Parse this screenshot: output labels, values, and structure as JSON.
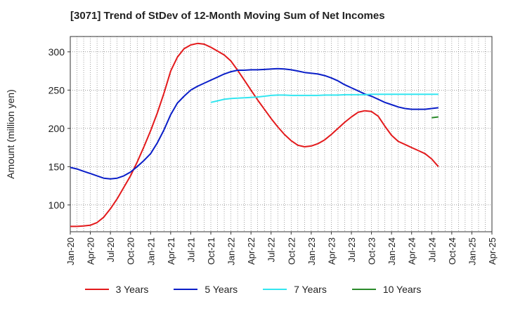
{
  "chart_data": {
    "type": "line",
    "title": "[3071]  Trend of StDev of 12-Month Moving Sum of Net Incomes",
    "xlabel": "",
    "ylabel": "Amount (million yen)",
    "x_tick_labels": [
      "Jan-20",
      "Apr-20",
      "Jul-20",
      "Oct-20",
      "Jan-21",
      "Apr-21",
      "Jul-21",
      "Oct-21",
      "Jan-22",
      "Apr-22",
      "Jul-22",
      "Oct-22",
      "Jan-23",
      "Apr-23",
      "Jul-23",
      "Oct-23",
      "Jan-24",
      "Apr-24",
      "Jul-24",
      "Oct-24",
      "Jan-25",
      "Apr-25"
    ],
    "y_ticks": [
      100,
      150,
      200,
      250,
      300
    ],
    "ylim": [
      65,
      320
    ],
    "xlim_months": [
      0,
      63
    ],
    "grid": true,
    "legend_position": "bottom",
    "series": [
      {
        "name": "3 Years",
        "color": "#e31a1c",
        "points": [
          [
            0,
            72
          ],
          [
            1,
            72
          ],
          [
            2,
            72.5
          ],
          [
            3,
            73.5
          ],
          [
            4,
            77
          ],
          [
            5,
            84
          ],
          [
            6,
            95
          ],
          [
            7,
            108
          ],
          [
            8,
            123
          ],
          [
            9,
            138
          ],
          [
            10,
            156
          ],
          [
            11,
            176
          ],
          [
            12,
            197
          ],
          [
            13,
            220
          ],
          [
            14,
            246
          ],
          [
            15,
            275
          ],
          [
            16,
            293
          ],
          [
            17,
            304
          ],
          [
            18,
            309
          ],
          [
            19,
            311
          ],
          [
            20,
            310
          ],
          [
            21,
            306
          ],
          [
            22,
            301
          ],
          [
            23,
            296
          ],
          [
            24,
            288
          ],
          [
            25,
            276
          ],
          [
            26,
            263
          ],
          [
            27,
            250
          ],
          [
            28,
            237
          ],
          [
            29,
            225
          ],
          [
            30,
            213
          ],
          [
            31,
            202
          ],
          [
            32,
            192
          ],
          [
            33,
            184
          ],
          [
            34,
            178
          ],
          [
            35,
            176
          ],
          [
            36,
            177
          ],
          [
            37,
            180
          ],
          [
            38,
            185
          ],
          [
            39,
            192
          ],
          [
            40,
            200
          ],
          [
            41,
            208
          ],
          [
            42,
            215
          ],
          [
            43,
            221
          ],
          [
            44,
            223
          ],
          [
            45,
            222
          ],
          [
            46,
            216
          ],
          [
            47,
            203
          ],
          [
            48,
            191
          ],
          [
            49,
            183
          ],
          [
            50,
            179
          ],
          [
            51,
            175
          ],
          [
            52,
            171
          ],
          [
            53,
            167
          ],
          [
            54,
            160
          ],
          [
            55,
            150
          ]
        ]
      },
      {
        "name": "5 Years",
        "color": "#0a1ec8",
        "points": [
          [
            0,
            149
          ],
          [
            1,
            147
          ],
          [
            2,
            144
          ],
          [
            3,
            141
          ],
          [
            4,
            138
          ],
          [
            5,
            135
          ],
          [
            6,
            134
          ],
          [
            7,
            135
          ],
          [
            8,
            138
          ],
          [
            9,
            143
          ],
          [
            10,
            150
          ],
          [
            11,
            158
          ],
          [
            12,
            167
          ],
          [
            13,
            181
          ],
          [
            14,
            198
          ],
          [
            15,
            218
          ],
          [
            16,
            233
          ],
          [
            17,
            242
          ],
          [
            18,
            250
          ],
          [
            19,
            255
          ],
          [
            20,
            259
          ],
          [
            21,
            263
          ],
          [
            22,
            267
          ],
          [
            23,
            271
          ],
          [
            24,
            274
          ],
          [
            25,
            276
          ],
          [
            26,
            276
          ],
          [
            27,
            276.5
          ],
          [
            28,
            276.5
          ],
          [
            29,
            277
          ],
          [
            30,
            277.5
          ],
          [
            31,
            278
          ],
          [
            32,
            277.5
          ],
          [
            33,
            276.5
          ],
          [
            34,
            275
          ],
          [
            35,
            273
          ],
          [
            36,
            272
          ],
          [
            37,
            271
          ],
          [
            38,
            269
          ],
          [
            39,
            266
          ],
          [
            40,
            262
          ],
          [
            41,
            257
          ],
          [
            42,
            253
          ],
          [
            43,
            249
          ],
          [
            44,
            245
          ],
          [
            45,
            242
          ],
          [
            46,
            238
          ],
          [
            47,
            234
          ],
          [
            48,
            231
          ],
          [
            49,
            228
          ],
          [
            50,
            226
          ],
          [
            51,
            225
          ],
          [
            52,
            225
          ],
          [
            53,
            225
          ],
          [
            54,
            226
          ],
          [
            55,
            227
          ]
        ]
      },
      {
        "name": "7 Years",
        "color": "#33e6f0",
        "points": [
          [
            21,
            234
          ],
          [
            22,
            236
          ],
          [
            23,
            238
          ],
          [
            24,
            239
          ],
          [
            25,
            239.5
          ],
          [
            26,
            240
          ],
          [
            27,
            240.5
          ],
          [
            28,
            241
          ],
          [
            29,
            242
          ],
          [
            30,
            243
          ],
          [
            31,
            243.5
          ],
          [
            32,
            243.5
          ],
          [
            33,
            243
          ],
          [
            34,
            243
          ],
          [
            35,
            243
          ],
          [
            36,
            243
          ],
          [
            37,
            243
          ],
          [
            38,
            243.5
          ],
          [
            39,
            243.5
          ],
          [
            40,
            243.5
          ],
          [
            41,
            244
          ],
          [
            42,
            244
          ],
          [
            43,
            244
          ],
          [
            44,
            244
          ],
          [
            45,
            244.5
          ],
          [
            46,
            244.5
          ],
          [
            47,
            244.5
          ],
          [
            48,
            244.5
          ],
          [
            49,
            244.5
          ],
          [
            50,
            244.5
          ],
          [
            51,
            244.5
          ],
          [
            52,
            244.5
          ],
          [
            53,
            244.5
          ],
          [
            54,
            244.5
          ],
          [
            55,
            244.5
          ]
        ]
      },
      {
        "name": "10 Years",
        "color": "#2a8a2a",
        "points": [
          [
            54,
            214
          ],
          [
            55,
            215
          ]
        ]
      }
    ]
  }
}
